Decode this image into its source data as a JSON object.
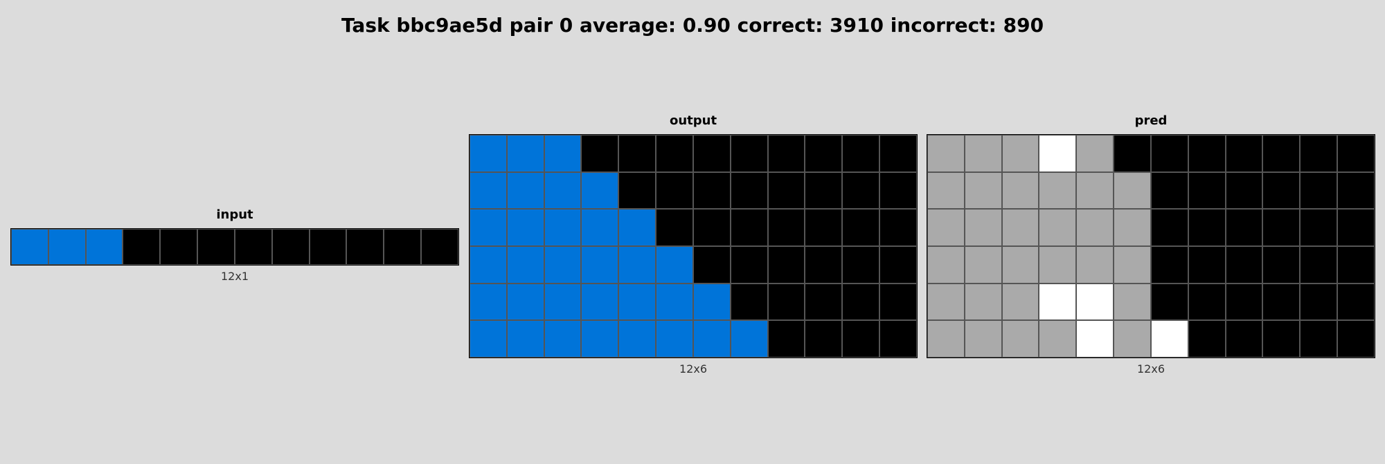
{
  "header": {
    "title": "Task bbc9ae5d pair 0 average: 0.90 correct: 3910 incorrect: 890"
  },
  "palette": {
    "0": "#000000",
    "1": "#0074D9",
    "5": "#AAAAAA",
    "W": "#FFFFFF"
  },
  "panels": [
    {
      "id": "input",
      "title": "input",
      "size_label": "12x1",
      "cols": 12,
      "rows": 1,
      "grid": [
        [
          "1",
          "1",
          "1",
          "0",
          "0",
          "0",
          "0",
          "0",
          "0",
          "0",
          "0",
          "0"
        ]
      ]
    },
    {
      "id": "output",
      "title": "output",
      "size_label": "12x6",
      "cols": 12,
      "rows": 6,
      "grid": [
        [
          "1",
          "1",
          "1",
          "0",
          "0",
          "0",
          "0",
          "0",
          "0",
          "0",
          "0",
          "0"
        ],
        [
          "1",
          "1",
          "1",
          "1",
          "0",
          "0",
          "0",
          "0",
          "0",
          "0",
          "0",
          "0"
        ],
        [
          "1",
          "1",
          "1",
          "1",
          "1",
          "0",
          "0",
          "0",
          "0",
          "0",
          "0",
          "0"
        ],
        [
          "1",
          "1",
          "1",
          "1",
          "1",
          "1",
          "0",
          "0",
          "0",
          "0",
          "0",
          "0"
        ],
        [
          "1",
          "1",
          "1",
          "1",
          "1",
          "1",
          "1",
          "0",
          "0",
          "0",
          "0",
          "0"
        ],
        [
          "1",
          "1",
          "1",
          "1",
          "1",
          "1",
          "1",
          "1",
          "0",
          "0",
          "0",
          "0"
        ]
      ]
    },
    {
      "id": "pred",
      "title": "pred",
      "size_label": "12x6",
      "cols": 12,
      "rows": 6,
      "grid": [
        [
          "5",
          "5",
          "5",
          "W",
          "5",
          "0",
          "0",
          "0",
          "0",
          "0",
          "0",
          "0"
        ],
        [
          "5",
          "5",
          "5",
          "5",
          "5",
          "5",
          "0",
          "0",
          "0",
          "0",
          "0",
          "0"
        ],
        [
          "5",
          "5",
          "5",
          "5",
          "5",
          "5",
          "0",
          "0",
          "0",
          "0",
          "0",
          "0"
        ],
        [
          "5",
          "5",
          "5",
          "5",
          "5",
          "5",
          "0",
          "0",
          "0",
          "0",
          "0",
          "0"
        ],
        [
          "5",
          "5",
          "5",
          "W",
          "W",
          "5",
          "0",
          "0",
          "0",
          "0",
          "0",
          "0"
        ],
        [
          "5",
          "5",
          "5",
          "5",
          "W",
          "5",
          "W",
          "0",
          "0",
          "0",
          "0",
          "0"
        ]
      ]
    }
  ]
}
